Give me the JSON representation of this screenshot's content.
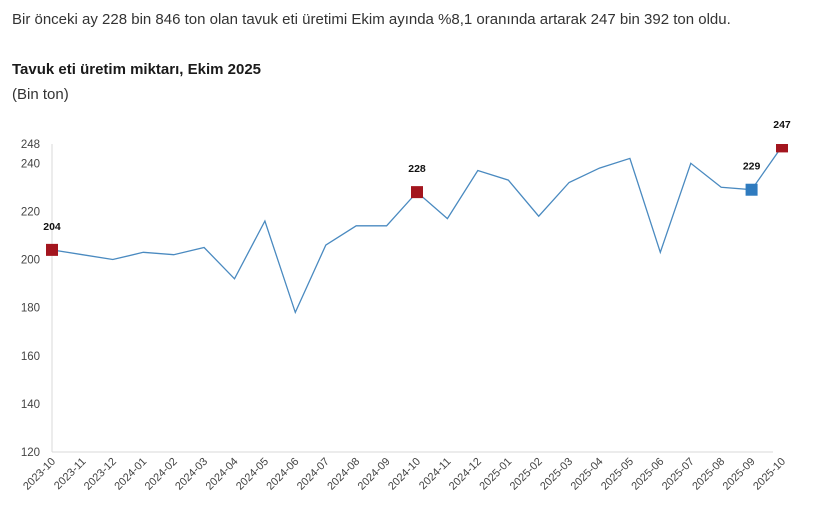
{
  "headline": "Bir önceki ay 228 bin 846 ton olan tavuk eti üretimi Ekim ayında %8,1 oranında artarak 247 bin 392 ton oldu.",
  "chart_title": "Tavuk eti üretim miktarı, Ekim 2025",
  "chart_subtitle": "(Bin ton)",
  "colors": {
    "line": "#4a8ac0",
    "highlight_red": "#a3151e",
    "highlight_blue": "#2f7bbf",
    "axis": "#d9d9d9",
    "text": "#444444"
  },
  "chart_data": {
    "type": "line",
    "title": "Tavuk eti üretim miktarı, Ekim 2025",
    "subtitle": "(Bin ton)",
    "xlabel": "",
    "ylabel": "Bin ton",
    "ylim": [
      120,
      248
    ],
    "yticks": [
      120,
      140,
      160,
      180,
      200,
      220,
      240,
      248
    ],
    "grid": false,
    "legend": null,
    "categories": [
      "2023-10",
      "2023-11",
      "2023-12",
      "2024-01",
      "2024-02",
      "2024-03",
      "2024-04",
      "2024-05",
      "2024-06",
      "2024-07",
      "2024-08",
      "2024-09",
      "2024-10",
      "2024-11",
      "2024-12",
      "2025-01",
      "2025-02",
      "2025-03",
      "2025-04",
      "2025-05",
      "2025-06",
      "2025-07",
      "2025-08",
      "2025-09",
      "2025-10"
    ],
    "series": [
      {
        "name": "Tavuk eti üretimi",
        "values": [
          204,
          202,
          200,
          203,
          202,
          205,
          192,
          216,
          178,
          206,
          214,
          214,
          228,
          217,
          237,
          233,
          218,
          232,
          238,
          242,
          203,
          240,
          230,
          229,
          247
        ]
      }
    ],
    "annotations": [
      {
        "category": "2023-10",
        "label": "204",
        "marker": "square",
        "color": "#a3151e"
      },
      {
        "category": "2024-10",
        "label": "228",
        "marker": "square",
        "color": "#a3151e"
      },
      {
        "category": "2025-09",
        "label": "229",
        "marker": "square",
        "color": "#2f7bbf"
      },
      {
        "category": "2025-10",
        "label": "247",
        "marker": "square",
        "color": "#a3151e"
      }
    ]
  }
}
